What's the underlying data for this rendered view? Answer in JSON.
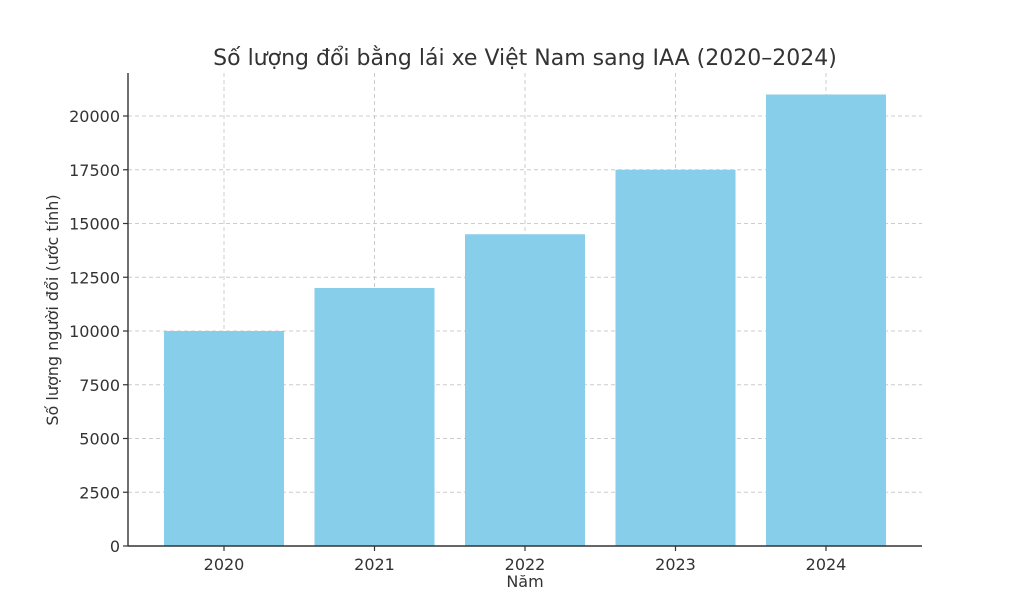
{
  "chart_data": {
    "type": "bar",
    "title": "Số lượng đổi bằng lái xe Việt Nam sang IAA (2020–2024)",
    "xlabel": "Năm",
    "ylabel": "Số lượng người đổi (ước tính)",
    "categories": [
      "2020",
      "2021",
      "2022",
      "2023",
      "2024"
    ],
    "values": [
      10000,
      12000,
      14500,
      17500,
      21000
    ],
    "ylim": [
      0,
      22000
    ],
    "yticks": [
      0,
      2500,
      5000,
      7500,
      10000,
      12500,
      15000,
      17500,
      20000
    ],
    "grid": true,
    "colors": {
      "bar": "#87CEEB",
      "grid": "#cccccc",
      "axis": "#333333",
      "text": "#333333"
    }
  }
}
